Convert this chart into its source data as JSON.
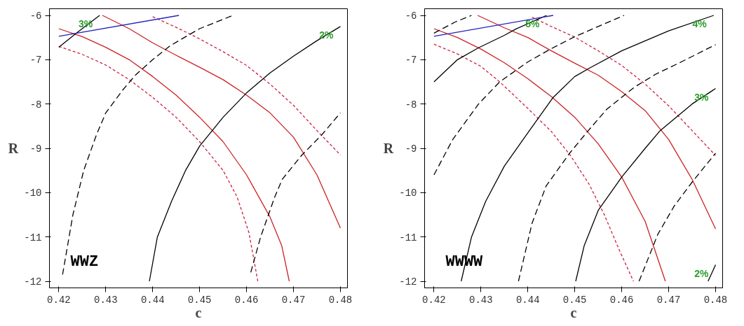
{
  "chart_data": [
    {
      "type": "line",
      "xlabel": "c",
      "ylabel": "R",
      "xlim": [
        0.418,
        0.4815
      ],
      "ylim": [
        -12.15,
        -5.85
      ],
      "xticks": [
        0.42,
        0.43,
        0.44,
        0.45,
        0.46,
        0.47,
        0.48
      ],
      "yticks": [
        -6,
        -7,
        -8,
        -9,
        -10,
        -11,
        -12
      ],
      "series": [
        {
          "color": "#cc2222",
          "line_style": "solid",
          "x": [
            0.42,
            0.425,
            0.43,
            0.435,
            0.44,
            0.445,
            0.45,
            0.455,
            0.46,
            0.465,
            0.4675,
            0.4691
          ],
          "values": [
            -6.3,
            -6.48,
            -6.72,
            -7.0,
            -7.38,
            -7.8,
            -8.3,
            -8.85,
            -9.6,
            -10.55,
            -11.2,
            -12
          ]
        },
        {
          "color": "#cc2222",
          "line_style": "solid",
          "x": [
            0.4293,
            0.435,
            0.44,
            0.445,
            0.45,
            0.455,
            0.46,
            0.465,
            0.47,
            0.475,
            0.48
          ],
          "values": [
            -6.0,
            -6.3,
            -6.62,
            -6.9,
            -7.17,
            -7.45,
            -7.8,
            -8.2,
            -8.75,
            -9.6,
            -10.8
          ]
        },
        {
          "color": "#cc2244",
          "line_style": "dashed",
          "x": [
            0.42,
            0.425,
            0.43,
            0.435,
            0.44,
            0.445,
            0.45,
            0.455,
            0.458,
            0.4605,
            0.4624
          ],
          "values": [
            -6.7,
            -6.88,
            -7.12,
            -7.45,
            -7.85,
            -8.3,
            -8.85,
            -9.5,
            -10.1,
            -10.9,
            -12
          ]
        },
        {
          "color": "#cc2244",
          "line_style": "dashed",
          "x": [
            0.44,
            0.445,
            0.45,
            0.455,
            0.46,
            0.465,
            0.47,
            0.475,
            0.48
          ],
          "values": [
            -6.03,
            -6.27,
            -6.53,
            -6.82,
            -7.13,
            -7.55,
            -8.03,
            -8.6,
            -9.15
          ]
        },
        {
          "name": "2%",
          "color": "#000000",
          "line_style": "solid",
          "x": [
            0.4393,
            0.441,
            0.444,
            0.447,
            0.45,
            0.455,
            0.46,
            0.465,
            0.47,
            0.475,
            0.48
          ],
          "values": [
            -12,
            -11.0,
            -10.2,
            -9.5,
            -8.95,
            -8.3,
            -7.75,
            -7.3,
            -6.92,
            -6.57,
            -6.25
          ]
        },
        {
          "name": "3%",
          "color": "#000000",
          "line_style": "solid",
          "x": [
            0.42,
            0.424,
            0.4287
          ],
          "values": [
            -6.72,
            -6.38,
            -6.0
          ]
        },
        {
          "color": "#000000",
          "line_style": "longdash",
          "x": [
            0.4208,
            0.423,
            0.4253,
            0.428,
            0.43,
            0.4335,
            0.4363,
            0.44,
            0.4438,
            0.45,
            0.4571
          ],
          "values": [
            -11.85,
            -10.5,
            -9.5,
            -8.7,
            -8.2,
            -7.7,
            -7.35,
            -7.0,
            -6.68,
            -6.3,
            -6.0
          ]
        },
        {
          "color": "#000000",
          "line_style": "longdash",
          "x": [
            0.4609,
            0.463,
            0.466,
            0.4676,
            0.4718,
            0.476,
            0.48
          ],
          "values": [
            -11.8,
            -11.0,
            -10.1,
            -9.7,
            -9.15,
            -8.7,
            -8.2
          ]
        },
        {
          "color": "#2222bb",
          "line_style": "solid",
          "x": [
            0.42,
            0.4456
          ],
          "values": [
            -6.47,
            -6.0
          ]
        }
      ],
      "annotations": [
        "WWZ"
      ]
    },
    {
      "type": "line",
      "xlabel": "c",
      "ylabel": "R",
      "xlim": [
        0.418,
        0.4815
      ],
      "ylim": [
        -12.15,
        -5.85
      ],
      "xticks": [
        0.42,
        0.43,
        0.44,
        0.45,
        0.46,
        0.47,
        0.48
      ],
      "yticks": [
        -6,
        -7,
        -8,
        -9,
        -10,
        -11,
        -12
      ],
      "series": [
        {
          "color": "#cc2222",
          "line_style": "solid",
          "x": [
            0.42,
            0.425,
            0.43,
            0.435,
            0.44,
            0.445,
            0.45,
            0.455,
            0.46,
            0.465,
            0.4693
          ],
          "values": [
            -6.3,
            -6.5,
            -6.76,
            -7.07,
            -7.43,
            -7.83,
            -8.3,
            -8.9,
            -9.65,
            -10.65,
            -12
          ]
        },
        {
          "color": "#cc2222",
          "line_style": "solid",
          "x": [
            0.4293,
            0.435,
            0.44,
            0.445,
            0.45,
            0.455,
            0.46,
            0.465,
            0.47,
            0.475,
            0.48
          ],
          "values": [
            -6.0,
            -6.28,
            -6.5,
            -6.8,
            -7.08,
            -7.35,
            -7.72,
            -8.15,
            -8.8,
            -9.7,
            -10.82
          ]
        },
        {
          "color": "#cc2244",
          "line_style": "dashed",
          "x": [
            0.42,
            0.425,
            0.43,
            0.434,
            0.44,
            0.445,
            0.449,
            0.453,
            0.4563,
            0.4595,
            0.4625
          ],
          "values": [
            -6.65,
            -6.87,
            -7.15,
            -7.5,
            -8.1,
            -8.62,
            -9.15,
            -9.8,
            -10.5,
            -11.3,
            -12
          ]
        },
        {
          "color": "#cc2244",
          "line_style": "dashed",
          "x": [
            0.4409,
            0.445,
            0.45,
            0.455,
            0.46,
            0.465,
            0.47,
            0.475,
            0.48
          ],
          "values": [
            -6.04,
            -6.25,
            -6.49,
            -6.8,
            -7.13,
            -7.55,
            -8.04,
            -8.6,
            -9.16
          ]
        },
        {
          "name": "5%",
          "color": "#000000",
          "line_style": "solid",
          "x": [
            0.42,
            0.425,
            0.4295,
            0.435,
            0.4374,
            0.444
          ],
          "values": [
            -7.5,
            -7.0,
            -6.73,
            -6.45,
            -6.31,
            -6.0
          ]
        },
        {
          "name": "4%",
          "color": "#000000",
          "line_style": "solid",
          "x": [
            0.4258,
            0.428,
            0.431,
            0.435,
            0.44,
            0.4454,
            0.45,
            0.4533,
            0.46,
            0.47,
            0.4796
          ],
          "values": [
            -12,
            -11.0,
            -10.2,
            -9.4,
            -8.65,
            -7.85,
            -7.38,
            -7.18,
            -6.8,
            -6.35,
            -6.0
          ]
        },
        {
          "name": "3%",
          "color": "#000000",
          "line_style": "solid",
          "x": [
            0.4502,
            0.452,
            0.455,
            0.46,
            0.465,
            0.4682,
            0.475,
            0.48
          ],
          "values": [
            -12,
            -11.2,
            -10.4,
            -9.65,
            -9.0,
            -8.6,
            -8.0,
            -7.65
          ]
        },
        {
          "name": "2%",
          "color": "#000000",
          "line_style": "solid",
          "x": [
            0.4784,
            0.48
          ],
          "values": [
            -12,
            -11.63
          ]
        },
        {
          "color": "#000000",
          "line_style": "longdash",
          "x": [
            0.42,
            0.4245,
            0.428
          ],
          "values": [
            -6.4,
            -6.15,
            -6.0
          ]
        },
        {
          "color": "#000000",
          "line_style": "longdash",
          "x": [
            0.42,
            0.424,
            0.4295,
            0.434,
            0.44,
            0.445,
            0.45,
            0.455,
            0.4605
          ],
          "values": [
            -9.6,
            -8.8,
            -8.0,
            -7.5,
            -7.05,
            -6.75,
            -6.48,
            -6.25,
            -6.0
          ]
        },
        {
          "color": "#000000",
          "line_style": "longdash",
          "x": [
            0.438,
            0.4409,
            0.4439,
            0.4489,
            0.4528,
            0.4568,
            0.4627,
            0.4672,
            0.4727,
            0.48
          ],
          "values": [
            -12,
            -10.69,
            -9.85,
            -9.11,
            -8.61,
            -8.12,
            -7.62,
            -7.33,
            -7.05,
            -6.66
          ]
        },
        {
          "color": "#000000",
          "line_style": "longdash",
          "x": [
            0.4637,
            0.4677,
            0.4712,
            0.4751,
            0.48
          ],
          "values": [
            -12,
            -10.94,
            -10.3,
            -9.75,
            -9.11
          ]
        },
        {
          "color": "#2222bb",
          "line_style": "solid",
          "x": [
            0.42,
            0.4454
          ],
          "values": [
            -6.47,
            -6.0
          ]
        }
      ],
      "annotations": [
        "WWWW"
      ]
    }
  ]
}
